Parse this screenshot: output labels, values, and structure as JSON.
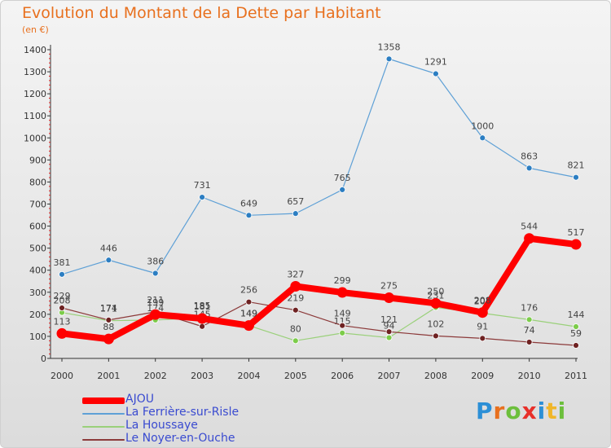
{
  "chart_data": {
    "type": "line",
    "title": "Evolution du Montant de la Dette par Habitant",
    "subtitle": "(en €)",
    "categories": [
      "2000",
      "2001",
      "2002",
      "2003",
      "2004",
      "2005",
      "2006",
      "2007",
      "2008",
      "2009",
      "2010",
      "2011"
    ],
    "ylim": [
      0,
      1400
    ],
    "yticks": [
      0,
      100,
      200,
      300,
      400,
      500,
      600,
      700,
      800,
      900,
      1000,
      1100,
      1200,
      1300,
      1400
    ],
    "grid": false,
    "legend_position": "bottom-left",
    "series": [
      {
        "name": "La Ferrière-sur-Risle",
        "color": "#5ea0d6",
        "point_color": "#2c7ec2",
        "width": 1.2,
        "values": [
          381,
          446,
          386,
          731,
          649,
          657,
          765,
          1358,
          1291,
          1000,
          863,
          821
        ]
      },
      {
        "name": "La Houssaye",
        "color": "#9ad07a",
        "point_color": "#7ccc4a",
        "width": 1.2,
        "values": [
          208,
          171,
          174,
          185,
          149,
          80,
          115,
          94,
          231,
          205,
          176,
          144
        ]
      },
      {
        "name": "Le Noyer-en-Ouche",
        "color": "#8c3a3a",
        "point_color": "#6e2222",
        "width": 1.2,
        "values": [
          229,
          174,
          211,
          145,
          256,
          219,
          149,
          121,
          102,
          91,
          74,
          59
        ]
      },
      {
        "name": "AJOU",
        "color": "#ff0000",
        "point_color": "#ff0000",
        "width": 8,
        "values": [
          113,
          88,
          199,
          181,
          149,
          327,
          299,
          275,
          250,
          208,
          544,
          517
        ]
      }
    ],
    "legend": [
      "AJOU",
      "La Ferrière-sur-Risle",
      "La Houssaye",
      "Le Noyer-en-Ouche"
    ]
  },
  "logo": {
    "parts": [
      "P",
      "r",
      "o",
      "x",
      "i",
      "t",
      "i"
    ]
  }
}
